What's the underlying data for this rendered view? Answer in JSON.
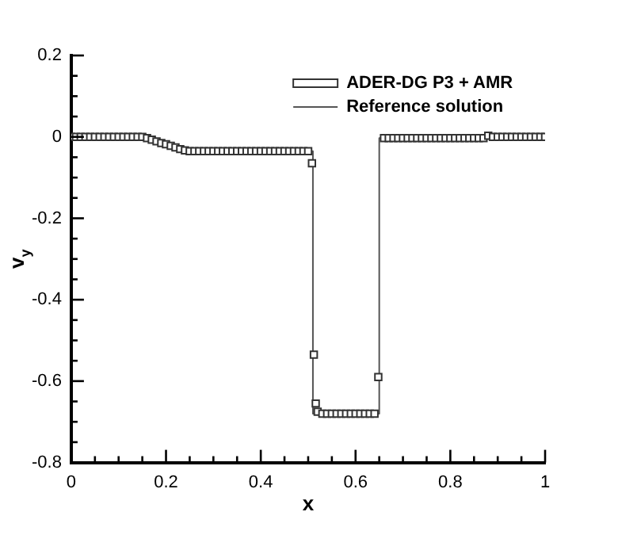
{
  "chart_data": {
    "type": "line",
    "xlabel": "x",
    "ylabel": "v$_{y}$",
    "xlim": [
      0,
      1
    ],
    "ylim": [
      -0.8,
      0.2
    ],
    "xticks": [
      0,
      {
        "value": 0.05,
        "label": null
      },
      {
        "value": 0.1,
        "label": null
      },
      {
        "value": 0.15,
        "label": null
      },
      0.2,
      {
        "value": 0.25,
        "label": null
      },
      {
        "value": 0.3,
        "label": null
      },
      {
        "value": 0.35,
        "label": null
      },
      0.4,
      {
        "value": 0.45,
        "label": null
      },
      {
        "value": 0.5,
        "label": null
      },
      {
        "value": 0.55,
        "label": null
      },
      0.6,
      {
        "value": 0.65,
        "label": null
      },
      {
        "value": 0.7,
        "label": null
      },
      {
        "value": 0.75,
        "label": null
      },
      0.8,
      {
        "value": 0.85,
        "label": null
      },
      {
        "value": 0.9,
        "label": null
      },
      {
        "value": 0.95,
        "label": null
      },
      1
    ],
    "yticks": [
      -0.8,
      {
        "value": -0.75,
        "label": null
      },
      {
        "value": -0.7,
        "label": null
      },
      {
        "value": -0.65,
        "label": null
      },
      -0.6,
      {
        "value": -0.55,
        "label": null
      },
      {
        "value": -0.5,
        "label": null
      },
      {
        "value": -0.45,
        "label": null
      },
      -0.4,
      {
        "value": -0.35,
        "label": null
      },
      {
        "value": -0.3,
        "label": null
      },
      {
        "value": -0.25,
        "label": null
      },
      -0.2,
      {
        "value": -0.15,
        "label": null
      },
      {
        "value": -0.1,
        "label": null
      },
      {
        "value": -0.05,
        "label": null
      },
      0,
      {
        "value": 0.05,
        "label": null
      },
      {
        "value": 0.1,
        "label": null
      },
      {
        "value": 0.15,
        "label": null
      },
      0.2
    ],
    "legend": "top right",
    "series": [
      {
        "name": "ADER-DG P3 + AMR",
        "type": "scatter",
        "marker": "square",
        "color": "#333333",
        "x": [
          0,
          0.01,
          0.02,
          0.03,
          0.04,
          0.05,
          0.06,
          0.07,
          0.08,
          0.09,
          0.1,
          0.11,
          0.12,
          0.13,
          0.14,
          0.15,
          0.16,
          0.17,
          0.18,
          0.19,
          0.2,
          0.21,
          0.22,
          0.23,
          0.24,
          0.25,
          0.26,
          0.27,
          0.28,
          0.29,
          0.3,
          0.31,
          0.32,
          0.33,
          0.34,
          0.35,
          0.36,
          0.37,
          0.38,
          0.39,
          0.4,
          0.41,
          0.42,
          0.43,
          0.44,
          0.45,
          0.46,
          0.47,
          0.48,
          0.49,
          0.5,
          0.508,
          0.512,
          0.516,
          0.52,
          0.53,
          0.54,
          0.55,
          0.56,
          0.57,
          0.58,
          0.59,
          0.6,
          0.61,
          0.62,
          0.63,
          0.64,
          0.648,
          0.66,
          0.67,
          0.68,
          0.69,
          0.7,
          0.71,
          0.72,
          0.73,
          0.74,
          0.75,
          0.76,
          0.77,
          0.78,
          0.79,
          0.8,
          0.81,
          0.82,
          0.83,
          0.84,
          0.85,
          0.86,
          0.87,
          0.88,
          0.89,
          0.9,
          0.91,
          0.92,
          0.93,
          0.94,
          0.95,
          0.96,
          0.97,
          0.98,
          0.99,
          1
        ],
        "values": [
          0,
          0,
          0,
          0,
          0,
          0,
          0,
          0,
          0,
          0,
          0,
          0,
          0,
          0,
          0,
          0,
          -0.003,
          -0.007,
          -0.011,
          -0.015,
          -0.018,
          -0.022,
          -0.026,
          -0.03,
          -0.033,
          -0.035,
          -0.035,
          -0.035,
          -0.035,
          -0.035,
          -0.035,
          -0.035,
          -0.035,
          -0.035,
          -0.035,
          -0.035,
          -0.035,
          -0.035,
          -0.035,
          -0.035,
          -0.035,
          -0.035,
          -0.035,
          -0.035,
          -0.035,
          -0.035,
          -0.035,
          -0.035,
          -0.035,
          -0.035,
          -0.035,
          -0.065,
          -0.535,
          -0.655,
          -0.675,
          -0.68,
          -0.68,
          -0.68,
          -0.68,
          -0.68,
          -0.68,
          -0.68,
          -0.68,
          -0.68,
          -0.68,
          -0.68,
          -0.68,
          -0.59,
          -0.003,
          -0.003,
          -0.003,
          -0.003,
          -0.003,
          -0.003,
          -0.003,
          -0.003,
          -0.003,
          -0.003,
          -0.003,
          -0.003,
          -0.003,
          -0.003,
          -0.003,
          -0.003,
          -0.003,
          -0.003,
          -0.003,
          -0.003,
          -0.003,
          -0.003,
          0.003,
          0,
          0,
          0,
          0,
          0,
          0,
          0,
          0,
          0,
          0,
          0,
          0
        ]
      },
      {
        "name": "Reference solution",
        "type": "line",
        "marker": "none",
        "line_style": "solid",
        "color": "#555555",
        "x": [
          0,
          0.155,
          0.25,
          0.51,
          0.51,
          0.65,
          0.65,
          0.875,
          0.88,
          0.885,
          1
        ],
        "values": [
          0,
          0,
          -0.035,
          -0.035,
          -0.68,
          -0.68,
          -0.003,
          -0.003,
          0.002,
          0,
          0
        ]
      }
    ]
  }
}
